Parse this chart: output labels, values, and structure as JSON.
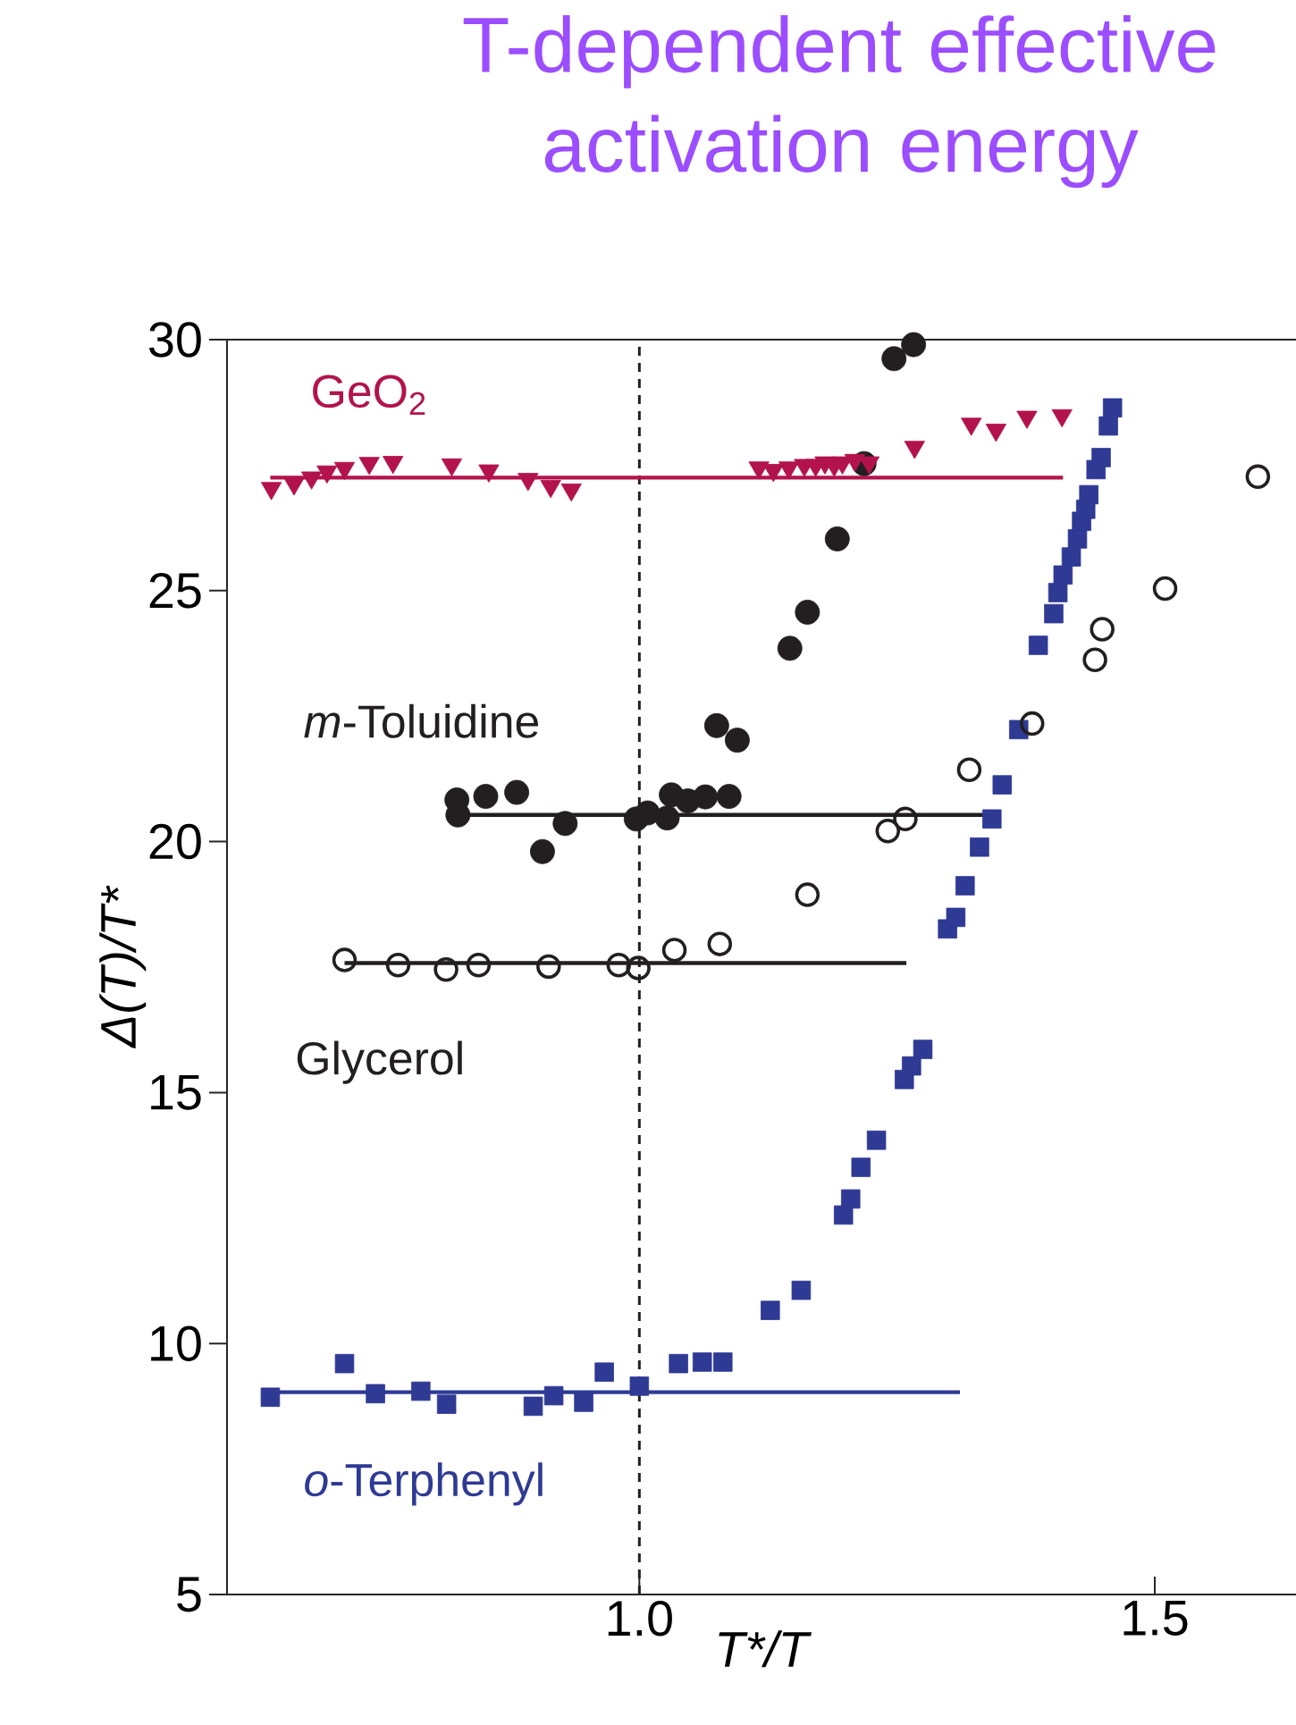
{
  "chart_data": {
    "type": "scatter",
    "title": "T-dependent effective activation energy",
    "xlabel": "T*/T",
    "ylabel": "Δ(T)/T*",
    "xlim": [
      0.6,
      1.637
    ],
    "ylim": [
      5,
      30
    ],
    "xticks": [
      {
        "value": 1.0,
        "label": "1.0"
      },
      {
        "value": 1.5,
        "label": "1.5"
      }
    ],
    "yticks": [
      5,
      10,
      15,
      20,
      25,
      30
    ],
    "ref_lines": [
      {
        "axis": "x",
        "value": 1.0,
        "line_style": "dashed",
        "color": "#231f20"
      }
    ],
    "series": [
      {
        "name": "GeO$_{2}$",
        "color": "#b3134b",
        "marker": "triangle",
        "x": [
          0.643,
          0.665,
          0.682,
          0.697,
          0.714,
          0.738,
          0.761,
          0.818,
          0.854,
          0.892,
          0.914,
          0.934,
          1.116,
          1.13,
          1.145,
          1.16,
          1.171,
          1.18,
          1.189,
          1.197,
          1.209,
          1.223,
          1.267,
          1.322,
          1.346,
          1.376,
          1.41
        ],
        "values": [
          27.04,
          27.13,
          27.25,
          27.37,
          27.44,
          27.54,
          27.56,
          27.51,
          27.39,
          27.22,
          27.08,
          27.01,
          27.45,
          27.4,
          27.45,
          27.5,
          27.5,
          27.55,
          27.5,
          27.55,
          27.6,
          27.55,
          27.86,
          28.32,
          28.2,
          28.46,
          28.49
        ]
      },
      {
        "type": "line",
        "color": "#b3134b",
        "x": [
          0.642,
          1.411
        ],
        "values": [
          27.25,
          27.25
        ]
      },
      {
        "name": "*m*-Toluidine",
        "color": "#231f20",
        "marker": "circle",
        "x": [
          0.823,
          0.824,
          0.851,
          0.881,
          0.906,
          0.928,
          0.997,
          1.008,
          1.027,
          1.031,
          1.047,
          1.064,
          1.075,
          1.087,
          1.095,
          1.146,
          1.163,
          1.192,
          1.218,
          1.247,
          1.266
        ],
        "values": [
          20.83,
          20.53,
          20.9,
          20.98,
          19.8,
          20.36,
          20.45,
          20.57,
          20.47,
          20.93,
          20.81,
          20.89,
          22.31,
          20.9,
          22.02,
          23.85,
          24.57,
          26.03,
          27.53,
          29.62,
          29.9
        ]
      },
      {
        "type": "line",
        "color": "#231f20",
        "x": [
          0.824,
          1.349
        ],
        "values": [
          20.53,
          20.53
        ]
      },
      {
        "name": "Glycerol",
        "color": "#231f20",
        "marker": "open circle",
        "x": [
          0.714,
          0.766,
          0.8125,
          0.844,
          0.912,
          0.98,
          0.999,
          1.034,
          1.078,
          1.163,
          1.241,
          1.258,
          1.32,
          1.381,
          1.442,
          1.449,
          1.51,
          1.6
        ],
        "values": [
          17.64,
          17.54,
          17.45,
          17.54,
          17.51,
          17.54,
          17.48,
          17.84,
          17.96,
          18.94,
          20.21,
          20.45,
          21.43,
          22.35,
          23.62,
          24.23,
          25.04,
          27.27
        ]
      },
      {
        "type": "line",
        "color": "#231f20",
        "x": [
          0.714,
          1.259
        ],
        "values": [
          17.58,
          17.58
        ]
      },
      {
        "name": "*o*-Terphenyl",
        "color": "#2e3a94",
        "marker": "square",
        "x": [
          0.642,
          0.714,
          0.744,
          0.788,
          0.813,
          0.897,
          0.917,
          0.946,
          0.966,
          1.0,
          1.038,
          1.061,
          1.081,
          1.127,
          1.157,
          1.198,
          1.205,
          1.215,
          1.23,
          1.257,
          1.264,
          1.275,
          1.299,
          1.307,
          1.316,
          1.33,
          1.342,
          1.352,
          1.368,
          1.387,
          1.402,
          1.406,
          1.411,
          1.419,
          1.425,
          1.429,
          1.433,
          1.436,
          1.443,
          1.448,
          1.455,
          1.459
        ],
        "values": [
          8.93,
          9.6,
          9.0,
          9.05,
          8.79,
          8.75,
          8.96,
          8.83,
          9.43,
          9.15,
          9.6,
          9.63,
          9.63,
          10.66,
          11.06,
          12.56,
          12.88,
          13.51,
          14.05,
          15.26,
          15.53,
          15.86,
          18.26,
          18.49,
          19.12,
          19.89,
          20.45,
          21.13,
          22.23,
          23.91,
          24.54,
          24.96,
          25.31,
          25.67,
          26.03,
          26.38,
          26.62,
          26.91,
          27.41,
          27.65,
          28.28,
          28.64
        ]
      },
      {
        "type": "line",
        "color": "#2e3a94",
        "x": [
          0.642,
          1.311
        ],
        "values": [
          9.03,
          9.03
        ]
      }
    ]
  }
}
